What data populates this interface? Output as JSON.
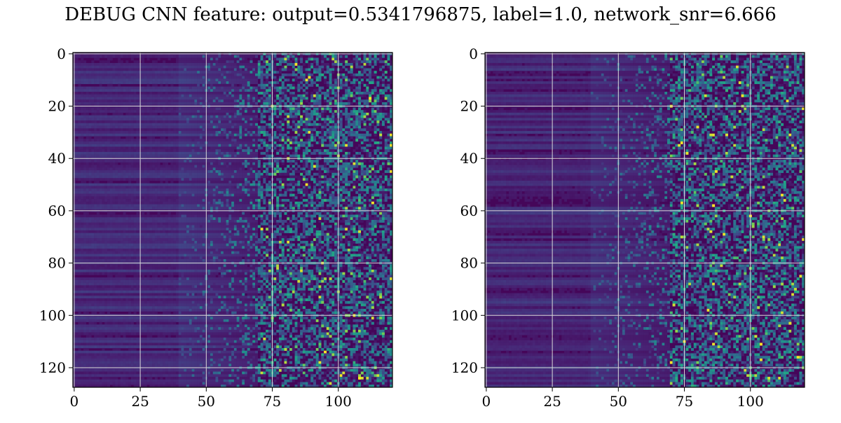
{
  "figure": {
    "title": "DEBUG CNN feature: output=0.5341796875, label=1.0, network_snr=6.666"
  },
  "chart_data": [
    {
      "type": "heatmap",
      "colormap": "viridis",
      "grid": true,
      "x_range": [
        0,
        121
      ],
      "y_range": [
        0,
        128
      ],
      "y_inverted": true,
      "x_ticks": [
        0,
        25,
        50,
        75,
        100
      ],
      "y_ticks": [
        0,
        20,
        40,
        60,
        80,
        100,
        120
      ],
      "x_tick_labels": [
        "0",
        "25",
        "50",
        "75",
        "100"
      ],
      "y_tick_labels": [
        "0",
        "20",
        "40",
        "60",
        "80",
        "100",
        "120"
      ],
      "pattern": {
        "low_band_end_column": 40,
        "transition_end_column": 70,
        "noisy_region_start_column": 70,
        "seed": 7
      }
    },
    {
      "type": "heatmap",
      "colormap": "viridis",
      "grid": true,
      "x_range": [
        0,
        121
      ],
      "y_range": [
        0,
        128
      ],
      "y_inverted": true,
      "x_ticks": [
        0,
        25,
        50,
        75,
        100
      ],
      "y_ticks": [
        0,
        20,
        40,
        60,
        80,
        100,
        120
      ],
      "x_tick_labels": [
        "0",
        "25",
        "50",
        "75",
        "100"
      ],
      "y_tick_labels": [
        "0",
        "20",
        "40",
        "60",
        "80",
        "100",
        "120"
      ],
      "pattern": {
        "low_band_end_column": 40,
        "transition_end_column": 70,
        "noisy_region_start_column": 70,
        "seed": 19
      }
    }
  ]
}
